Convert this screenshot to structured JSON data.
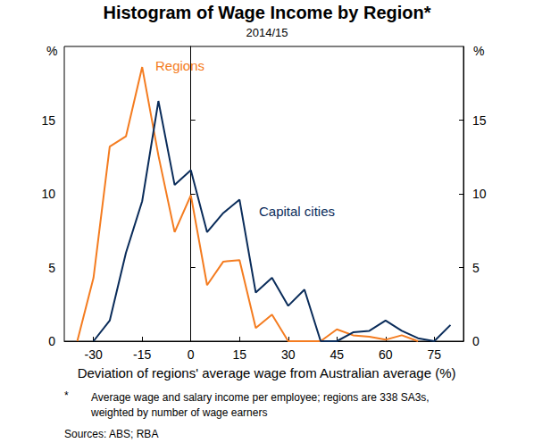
{
  "chart_data": {
    "type": "line",
    "title": "Histogram of Wage Income by Region*",
    "subtitle": "2014/15",
    "xlabel": "Deviation of regions' average wage from Australian average (%)",
    "ylabel": "%",
    "y2label": "%",
    "footnote_marker": "*",
    "footnote": [
      "Average wage and salary income per employee; regions are 338 SA3s,",
      "weighted by number of wage earners"
    ],
    "source": "Sources: ABS; RBA",
    "x": [
      -35,
      -30,
      -25,
      -20,
      -15,
      -10,
      -5,
      0,
      5,
      10,
      15,
      20,
      25,
      30,
      35,
      40,
      45,
      50,
      55,
      60,
      65,
      70,
      75,
      80
    ],
    "series": [
      {
        "name": "Regions",
        "color": "#f47c20",
        "values": [
          0,
          4.3,
          13.2,
          13.9,
          18.6,
          12.6,
          7.4,
          9.9,
          3.8,
          5.4,
          5.5,
          0.9,
          1.8,
          0,
          0,
          0,
          0.8,
          0.4,
          0.3,
          0.1,
          0.4,
          0,
          null,
          null
        ]
      },
      {
        "name": "Capital cities",
        "color": "#0a2c5a",
        "values": [
          null,
          0,
          1.4,
          6.0,
          9.5,
          16.3,
          10.6,
          11.6,
          7.4,
          8.7,
          9.6,
          3.3,
          4.3,
          2.4,
          3.5,
          0,
          0,
          0.6,
          0.7,
          1.4,
          0.7,
          0.2,
          0,
          1.1
        ]
      }
    ],
    "xlim": [
      -39,
      84
    ],
    "xticks": [
      -30,
      -15,
      0,
      15,
      30,
      45,
      60,
      75
    ],
    "ylim": [
      0,
      20
    ],
    "yticks": [
      0,
      5,
      10,
      15
    ],
    "y2lim": [
      0,
      20
    ],
    "y2ticks": [
      0,
      5,
      10,
      15
    ],
    "grid": false
  }
}
